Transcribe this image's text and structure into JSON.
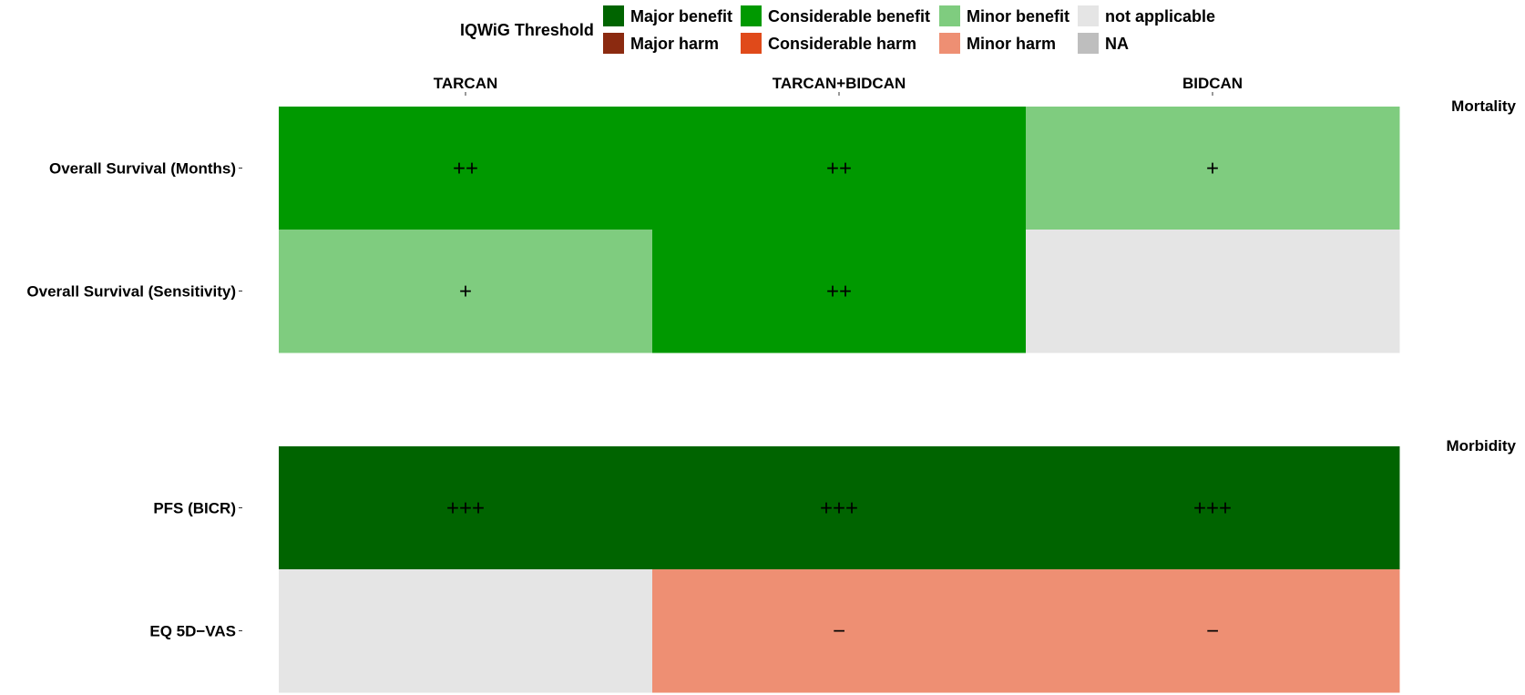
{
  "chart_data": {
    "type": "heatmap",
    "legend": {
      "title": "IQWiG Threshold",
      "placement": "top",
      "items": [
        {
          "key": "major_benefit",
          "label": "Major benefit",
          "color": "#006400"
        },
        {
          "key": "considerable_benefit",
          "label": "Considerable benefit",
          "color": "#009900"
        },
        {
          "key": "minor_benefit",
          "label": "Minor benefit",
          "color": "#7FCC7F"
        },
        {
          "key": "not_applicable",
          "label": "not applicable",
          "color": "#E5E5E5"
        },
        {
          "key": "major_harm",
          "label": "Major harm",
          "color": "#8B2A10"
        },
        {
          "key": "considerable_harm",
          "label": "Considerable harm",
          "color": "#E04A1A"
        },
        {
          "key": "minor_harm",
          "label": "Minor harm",
          "color": "#EE8F73"
        },
        {
          "key": "na",
          "label": "NA",
          "color": "#BEBEBE"
        }
      ]
    },
    "columns": [
      "TARCAN",
      "TARCAN+BIDCAN",
      "BIDCAN"
    ],
    "panels": [
      {
        "label": "Mortality",
        "rows": [
          {
            "label": "Overall Survival (Months)",
            "cells": [
              {
                "category": "considerable_benefit",
                "symbol": "++"
              },
              {
                "category": "considerable_benefit",
                "symbol": "++"
              },
              {
                "category": "minor_benefit",
                "symbol": "+"
              }
            ]
          },
          {
            "label": "Overall Survival (Sensitivity)",
            "cells": [
              {
                "category": "minor_benefit",
                "symbol": "+"
              },
              {
                "category": "considerable_benefit",
                "symbol": "++"
              },
              {
                "category": "not_applicable",
                "symbol": ""
              }
            ]
          }
        ]
      },
      {
        "label": "Morbidity",
        "rows": [
          {
            "label": "PFS (BICR)",
            "cells": [
              {
                "category": "major_benefit",
                "symbol": "+++"
              },
              {
                "category": "major_benefit",
                "symbol": "+++"
              },
              {
                "category": "major_benefit",
                "symbol": "+++"
              }
            ]
          },
          {
            "label": "EQ 5D−VAS",
            "cells": [
              {
                "category": "not_applicable",
                "symbol": ""
              },
              {
                "category": "minor_harm",
                "symbol": "−"
              },
              {
                "category": "minor_harm",
                "symbol": "−"
              }
            ]
          }
        ]
      }
    ]
  }
}
